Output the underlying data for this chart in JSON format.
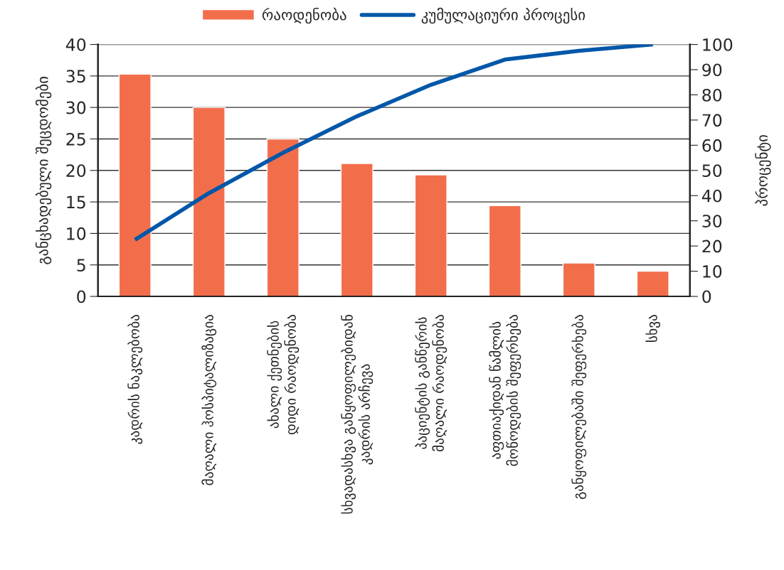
{
  "chart_data": {
    "type": "bar",
    "ylabel": "განცხადებული შეცდომები",
    "y2label": "პროცენტი",
    "categories": [
      "კადრის ნაკლებობა",
      "მაღალი ჰოსპიტალიზაცია",
      "ახალი ქეთნების\nდიდი რაოდენობა",
      "სხვადასხვა განყოფილებიდან\nკადრის არჩევა",
      "პაციენტის განწერის\nმაღალი რაოდენობა",
      "აფთიაქიდან წამლის\nმოწოდების შეფერხება",
      "განყოფილებაში შეფერხება",
      "სხვა"
    ],
    "series": [
      {
        "name": "რაოდენობა",
        "color": "#f26e4b",
        "values": [
          35.3,
          30,
          25,
          21.1,
          19.3,
          14.4,
          5.3,
          4.0
        ]
      },
      {
        "name": "კუმულაციური პროცესი",
        "type": "line",
        "axis": "y2",
        "color": "#0057a8",
        "values": [
          22.5,
          41,
          57,
          71.5,
          84,
          94,
          97.5,
          100
        ]
      }
    ],
    "ylim": [
      0,
      40
    ],
    "yticks": [
      0,
      5,
      10,
      15,
      20,
      25,
      30,
      35,
      40
    ],
    "y2lim": [
      0,
      100
    ],
    "y2ticks": [
      0,
      10,
      20,
      30,
      40,
      50,
      60,
      70,
      80,
      90,
      100
    ],
    "grid": "y",
    "legend": "top",
    "marker": "none",
    "line_style": "solid"
  }
}
